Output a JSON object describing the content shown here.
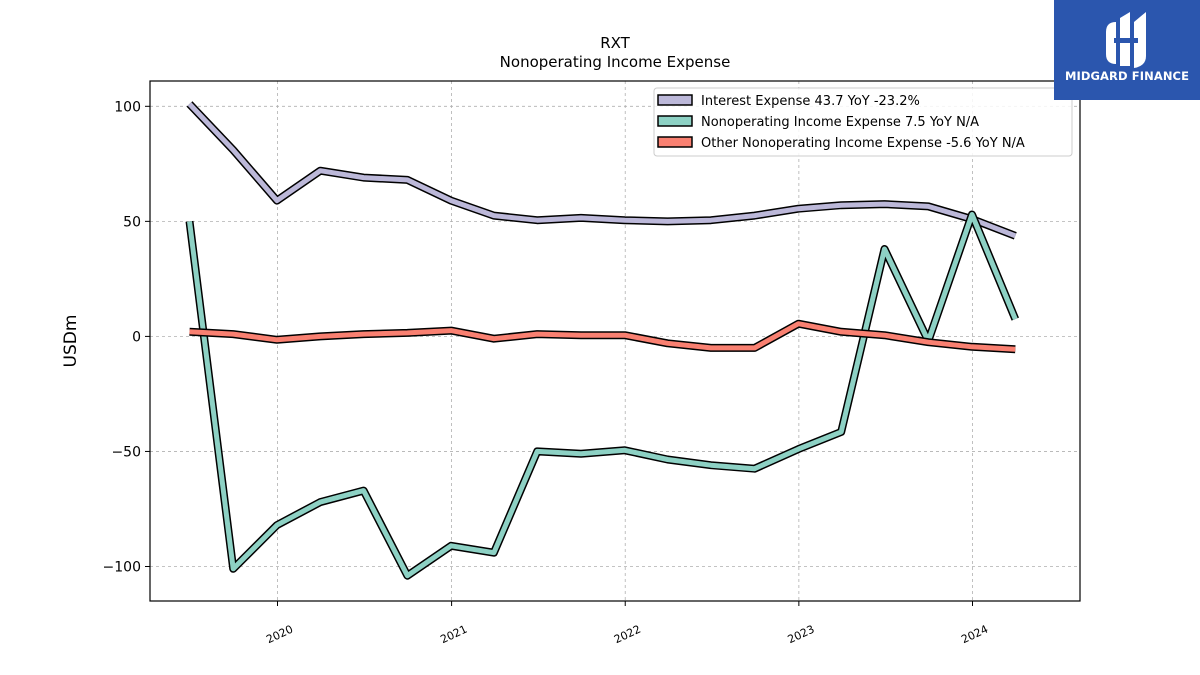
{
  "logo": {
    "text": "MIDGARD FINANCE"
  },
  "chart_data": {
    "type": "line",
    "title": "RXT",
    "subtitle": "Nonoperating Income Expense",
    "xlabel": "",
    "ylabel": "USDm",
    "x_ticks": [
      "2020",
      "2021",
      "2022",
      "2023",
      "2024"
    ],
    "y_ticks": [
      100,
      50,
      0,
      -50,
      -100
    ],
    "ylim": [
      -115,
      111
    ],
    "xlim": [
      "2019-04-08",
      "2024-08-14"
    ],
    "grid": true,
    "legend_position": "top-right",
    "x": [
      "2019-06-30",
      "2019-09-30",
      "2019-12-31",
      "2020-03-31",
      "2020-06-30",
      "2020-09-30",
      "2020-12-31",
      "2021-03-31",
      "2021-06-30",
      "2021-09-30",
      "2021-12-31",
      "2022-03-31",
      "2022-06-30",
      "2022-09-30",
      "2022-12-31",
      "2023-03-31",
      "2023-06-30",
      "2023-09-30",
      "2023-12-31",
      "2024-03-31"
    ],
    "series": [
      {
        "name": "Interest Expense",
        "legend_label": "Interest Expense  43.7 YoY -23.2%",
        "color": "#bcb8d9",
        "values": [
          101,
          81,
          59,
          72,
          69,
          68,
          59,
          52.5,
          50.5,
          51.5,
          50.5,
          50,
          50.5,
          52.5,
          55.5,
          57,
          57.5,
          56.5,
          51,
          43.7
        ]
      },
      {
        "name": "Nonoperating Income Expense",
        "legend_label": "Nonoperating Income Expense  7.5 YoY N/A",
        "color": "#8dd1c4",
        "values": [
          50,
          -101,
          -82,
          -72,
          -67,
          -104,
          -91,
          -94,
          -50,
          -51,
          -49.5,
          -53.5,
          -56,
          -57.5,
          -49,
          -41.5,
          38,
          -2,
          53,
          7.5
        ]
      },
      {
        "name": "Other Nonoperating Income Expense",
        "legend_label": "Other Nonoperating Income Expense  -5.6 YoY N/A",
        "color": "#f98071",
        "values": [
          2,
          1,
          -1.5,
          0,
          1,
          1.5,
          2.5,
          -1,
          1,
          0.5,
          0.5,
          -3,
          -5,
          -5,
          5.5,
          2,
          0.5,
          -2.5,
          -4.5,
          -5.6
        ]
      }
    ]
  }
}
